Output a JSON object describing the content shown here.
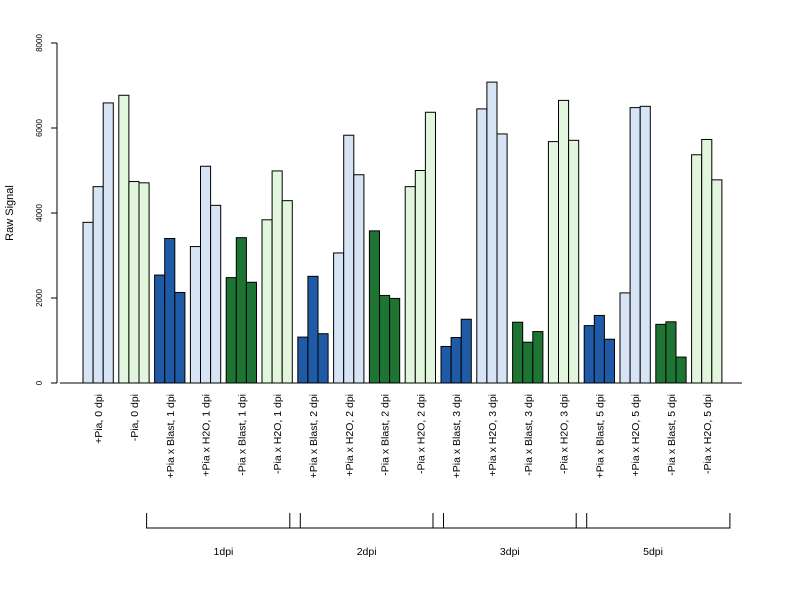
{
  "chart_data": {
    "type": "bar",
    "ylabel": "Raw Signal",
    "ylim": [
      0,
      8000
    ],
    "yticks": [
      0,
      2000,
      4000,
      6000,
      8000
    ],
    "grid": false,
    "categories": [
      "+Pia, 0 dpi",
      "-Pia, 0 dpi",
      "+Pia x Blast, 1 dpi",
      "+Pia x H2O, 1 dpi",
      "-Pia x Blast, 1 dpi",
      "-Pia x H2O, 1 dpi",
      "+Pia x Blast, 2 dpi",
      "+Pia x H2O, 2 dpi",
      "-Pia x Blast, 2 dpi",
      "-Pia x H2O, 2 dpi",
      "+Pia x Blast, 3 dpi",
      "+Pia x H2O, 3 dpi",
      "-Pia x Blast, 3 dpi",
      "-Pia x H2O, 3 dpi",
      "+Pia x Blast, 5 dpi",
      "+Pia x H2O, 5 dpi",
      "-Pia x Blast, 5 dpi",
      "-Pia x H2O, 5 dpi"
    ],
    "colors": [
      "#d6e4f5",
      "#e1f6dc",
      "#1f5aa6",
      "#d6e4f5",
      "#1d7433",
      "#e1f6dc",
      "#1f5aa6",
      "#d6e4f5",
      "#1d7433",
      "#e1f6dc",
      "#1f5aa6",
      "#d6e4f5",
      "#1d7433",
      "#e1f6dc",
      "#1f5aa6",
      "#d6e4f5",
      "#1d7433",
      "#e1f6dc"
    ],
    "values": [
      [
        3780,
        4620,
        6590
      ],
      [
        6770,
        4740,
        4710
      ],
      [
        2540,
        3400,
        2130
      ],
      [
        3210,
        5100,
        4180
      ],
      [
        2480,
        3420,
        2370
      ],
      [
        3840,
        4990,
        4290
      ],
      [
        1080,
        2510,
        1160
      ],
      [
        3060,
        5830,
        4900
      ],
      [
        3580,
        2060,
        1990
      ],
      [
        4620,
        5000,
        6370
      ],
      [
        860,
        1070,
        1500
      ],
      [
        6450,
        7080,
        5860
      ],
      [
        1430,
        960,
        1210
      ],
      [
        5680,
        6650,
        5710
      ],
      [
        1350,
        1590,
        1030
      ],
      [
        2120,
        6480,
        6510
      ],
      [
        1380,
        1440,
        610
      ],
      [
        5370,
        5730,
        4780
      ]
    ],
    "groups": [
      {
        "label": "1dpi",
        "from": 2,
        "to": 5
      },
      {
        "label": "2dpi",
        "from": 6,
        "to": 9
      },
      {
        "label": "3dpi",
        "from": 10,
        "to": 13
      },
      {
        "label": "5dpi",
        "from": 14,
        "to": 17
      }
    ]
  }
}
